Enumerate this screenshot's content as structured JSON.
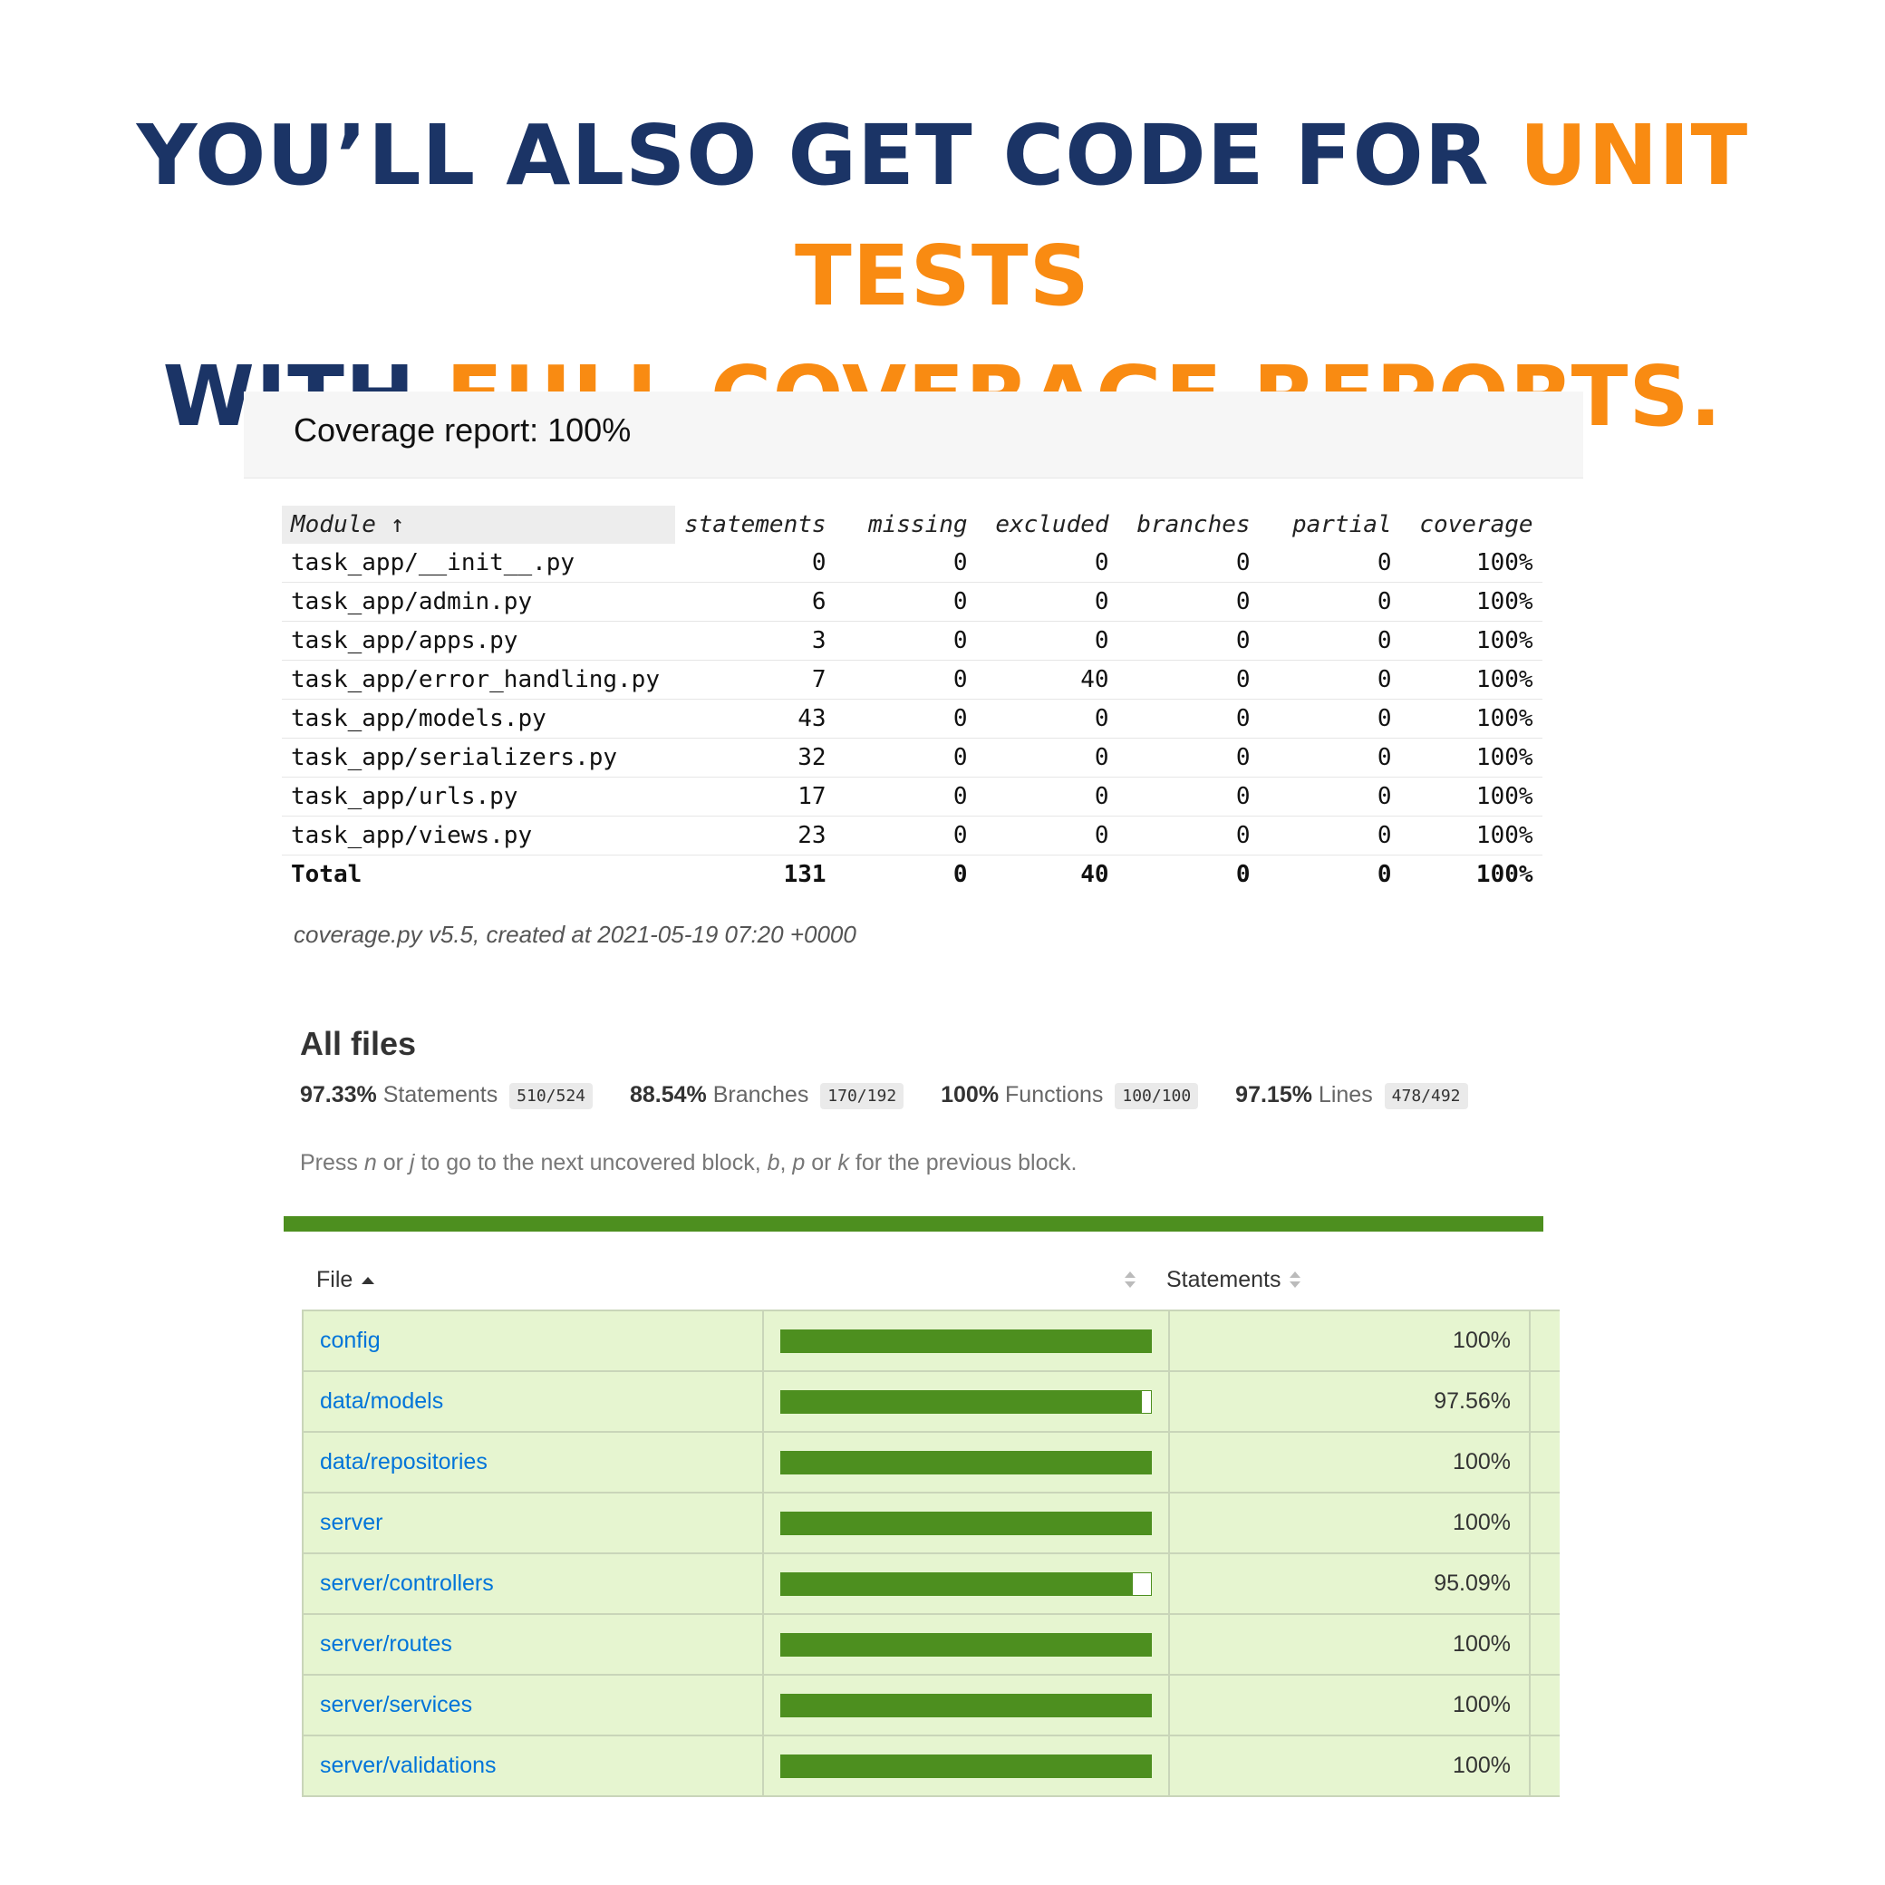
{
  "headline": {
    "line1_part1": "YOU’LL ALSO GET CODE FOR ",
    "line1_highlight": "UNIT TESTS",
    "line2_part1": "WITH ",
    "line2_highlight": "FULL COVERAGE REPORTS.",
    "color_primary": "#1b3466",
    "color_highlight": "#f98b12"
  },
  "coverage_py": {
    "title": "Coverage report: 100%",
    "columns": {
      "module": "Module ↑",
      "statements": "statements",
      "missing": "missing",
      "excluded": "excluded",
      "branches": "branches",
      "partial": "partial",
      "coverage": "coverage"
    },
    "rows": [
      {
        "module": "task_app/__init__.py",
        "statements": "0",
        "missing": "0",
        "excluded": "0",
        "branches": "0",
        "partial": "0",
        "coverage": "100%"
      },
      {
        "module": "task_app/admin.py",
        "statements": "6",
        "missing": "0",
        "excluded": "0",
        "branches": "0",
        "partial": "0",
        "coverage": "100%"
      },
      {
        "module": "task_app/apps.py",
        "statements": "3",
        "missing": "0",
        "excluded": "0",
        "branches": "0",
        "partial": "0",
        "coverage": "100%"
      },
      {
        "module": "task_app/error_handling.py",
        "statements": "7",
        "missing": "0",
        "excluded": "40",
        "branches": "0",
        "partial": "0",
        "coverage": "100%"
      },
      {
        "module": "task_app/models.py",
        "statements": "43",
        "missing": "0",
        "excluded": "0",
        "branches": "0",
        "partial": "0",
        "coverage": "100%"
      },
      {
        "module": "task_app/serializers.py",
        "statements": "32",
        "missing": "0",
        "excluded": "0",
        "branches": "0",
        "partial": "0",
        "coverage": "100%"
      },
      {
        "module": "task_app/urls.py",
        "statements": "17",
        "missing": "0",
        "excluded": "0",
        "branches": "0",
        "partial": "0",
        "coverage": "100%"
      },
      {
        "module": "task_app/views.py",
        "statements": "23",
        "missing": "0",
        "excluded": "0",
        "branches": "0",
        "partial": "0",
        "coverage": "100%"
      }
    ],
    "total": {
      "module": "Total",
      "statements": "131",
      "missing": "0",
      "excluded": "40",
      "branches": "0",
      "partial": "0",
      "coverage": "100%"
    },
    "footer": "coverage.py v5.5, created at 2021-05-19 07:20 +0000"
  },
  "istanbul": {
    "title": "All files",
    "summary": [
      {
        "pct": "97.33%",
        "label": "Statements",
        "fraction": "510/524"
      },
      {
        "pct": "88.54%",
        "label": "Branches",
        "fraction": "170/192"
      },
      {
        "pct": "100%",
        "label": "Functions",
        "fraction": "100/100"
      },
      {
        "pct": "97.15%",
        "label": "Lines",
        "fraction": "478/492"
      }
    ],
    "hint": {
      "t1": "Press ",
      "k1": "n",
      "t2": " or ",
      "k2": "j",
      "t3": " to go to the next uncovered block, ",
      "k3": "b",
      "t4": ", ",
      "k4": "p",
      "t5": " or ",
      "k5": "k",
      "t6": " for the previous block."
    },
    "columns": {
      "file": "File",
      "statements": "Statements"
    },
    "status_color": "#4d8f1f",
    "rows": [
      {
        "file": "config",
        "pct": "100%",
        "fill": 1.0
      },
      {
        "file": "data/models",
        "pct": "97.56%",
        "fill": 0.9756
      },
      {
        "file": "data/repositories",
        "pct": "100%",
        "fill": 1.0
      },
      {
        "file": "server",
        "pct": "100%",
        "fill": 1.0
      },
      {
        "file": "server/controllers",
        "pct": "95.09%",
        "fill": 0.9509
      },
      {
        "file": "server/routes",
        "pct": "100%",
        "fill": 1.0
      },
      {
        "file": "server/services",
        "pct": "100%",
        "fill": 1.0
      },
      {
        "file": "server/validations",
        "pct": "100%",
        "fill": 1.0
      }
    ]
  }
}
